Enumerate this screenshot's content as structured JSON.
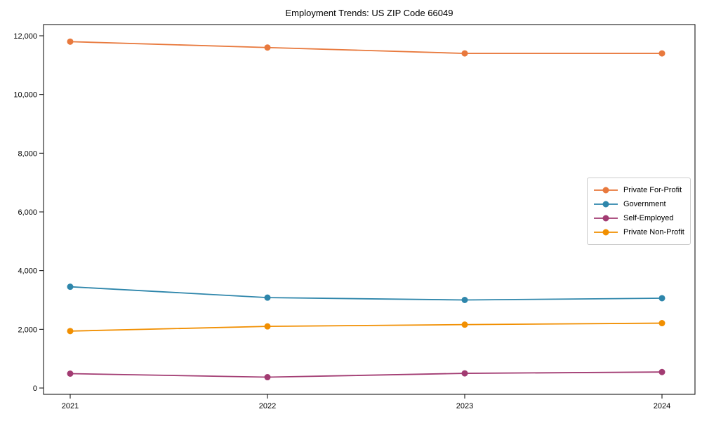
{
  "figure": {
    "background": "#ffffff",
    "frame_color": "#000000"
  },
  "chart_data": {
    "type": "line",
    "title": "Employment Trends: US ZIP Code 66049",
    "xlabel": "",
    "ylabel": "",
    "grid": false,
    "legend_position": "center-right",
    "marker": "circle",
    "x": [
      2021,
      2022,
      2023,
      2024
    ],
    "xticklabels": [
      "2021",
      "2022",
      "2023",
      "2024"
    ],
    "ylim": [
      0,
      12000
    ],
    "yticks": [
      0,
      2000,
      4000,
      6000,
      8000,
      10000,
      12000
    ],
    "yticklabels": [
      "0",
      "2,000",
      "4,000",
      "6,000",
      "8,000",
      "10,000",
      "12,000"
    ],
    "series": [
      {
        "name": "Private For-Profit",
        "color": "#E8793D",
        "values": [
          11800,
          11600,
          11400,
          11400
        ]
      },
      {
        "name": "Government",
        "color": "#2E86AB",
        "values": [
          3450,
          3080,
          3000,
          3060
        ]
      },
      {
        "name": "Self-Employed",
        "color": "#A23B72",
        "values": [
          490,
          370,
          500,
          545
        ]
      },
      {
        "name": "Private Non-Profit",
        "color": "#F18F01",
        "values": [
          1940,
          2100,
          2160,
          2210
        ]
      }
    ]
  }
}
